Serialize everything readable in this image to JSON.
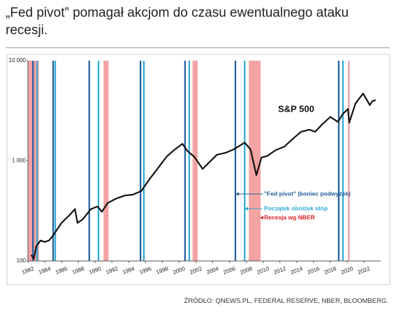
{
  "chart_data": {
    "type": "line",
    "title": "„Fed pivot” pomagał akcjom do czasu ewentualnego ataku recesji.",
    "source": "ŹRÓDŁO: QNEWS.PL, FEDERAL RESERVE, NBER, BLOOMBERG.",
    "log_y": true,
    "xlim": [
      1982,
      2024
    ],
    "xticks": [
      1982,
      1984,
      1986,
      1988,
      1990,
      1992,
      1994,
      1996,
      1998,
      2000,
      2002,
      2004,
      2006,
      2008,
      2010,
      2012,
      2014,
      2016,
      2018,
      2020,
      2022
    ],
    "ylim": [
      100,
      10000
    ],
    "yticks": [
      100,
      {
        "value": 1000,
        "label": "1 000"
      },
      {
        "value": 10000,
        "label": "10 000"
      }
    ],
    "series": [
      {
        "name": "S&P 500",
        "color": "#111111",
        "x": [
          1982.4,
          1982.7,
          1983.0,
          1983.5,
          1984.0,
          1984.5,
          1985.0,
          1986.0,
          1987.0,
          1987.6,
          1987.9,
          1988.5,
          1989.5,
          1990.3,
          1990.8,
          1991.5,
          1992.5,
          1993.5,
          1994.5,
          1995.5,
          1996.5,
          1997.5,
          1998.5,
          1999.5,
          2000.4,
          2001.0,
          2001.8,
          2002.8,
          2003.5,
          2004.5,
          2005.5,
          2006.5,
          2007.8,
          2008.5,
          2009.2,
          2009.8,
          2010.5,
          2011.5,
          2012.5,
          2013.5,
          2014.5,
          2015.5,
          2016.2,
          2017.0,
          2018.0,
          2018.9,
          2019.5,
          2020.1,
          2020.25,
          2021.0,
          2021.9,
          2022.7,
          2023.0,
          2023.4
        ],
        "values": [
          115,
          105,
          140,
          160,
          155,
          160,
          180,
          240,
          290,
          330,
          240,
          260,
          330,
          350,
          310,
          380,
          420,
          450,
          460,
          500,
          660,
          850,
          1100,
          1300,
          1480,
          1250,
          1100,
          830,
          950,
          1150,
          1200,
          1300,
          1520,
          1300,
          720,
          1080,
          1120,
          1280,
          1380,
          1650,
          1950,
          2050,
          1950,
          2300,
          2750,
          2450,
          2950,
          3300,
          2400,
          3750,
          4700,
          3600,
          3950,
          4050
        ]
      }
    ],
    "fed_pivots": {
      "name": "\"Fed pivot\" (koniec podwyżek)",
      "color": "#1f5c99",
      "x": [
        1982.6,
        1985.0,
        1989.3,
        1995.4,
        2000.7,
        2006.7,
        2019.0
      ]
    },
    "rate_cuts": {
      "name": "Początek obniżek stóp",
      "color": "#2ea9d6",
      "x": [
        1983.1,
        1985.25,
        1990.4,
        1995.8,
        2001.2,
        2007.8,
        2019.5
      ]
    },
    "recessions": {
      "name": "Recesja wg NBER",
      "color": "#f4a3a3",
      "ranges": [
        [
          1982.0,
          1983.3
        ],
        [
          1991.0,
          1991.6
        ],
        [
          2001.6,
          2002.2
        ],
        [
          2008.3,
          2009.7
        ],
        [
          2020.1,
          2020.3
        ]
      ]
    }
  }
}
